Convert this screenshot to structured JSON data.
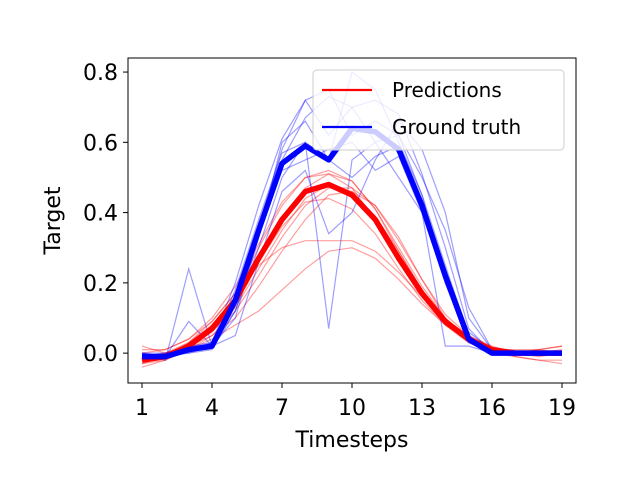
{
  "chart_data": {
    "type": "line",
    "title": "",
    "xlabel": "Timesteps",
    "ylabel": "Target",
    "xlim": [
      0.4,
      19.6
    ],
    "ylim": [
      -0.085,
      0.84
    ],
    "xticks": [
      1,
      4,
      7,
      10,
      13,
      16,
      19
    ],
    "xtick_labels": [
      "1",
      "4",
      "7",
      "10",
      "13",
      "16",
      "19"
    ],
    "yticks": [
      0.0,
      0.2,
      0.4,
      0.6,
      0.8
    ],
    "ytick_labels": [
      "0.0",
      "0.2",
      "0.4",
      "0.6",
      "0.8"
    ],
    "grid": false,
    "legend_position": "top-right",
    "x": [
      1,
      2,
      3,
      4,
      5,
      6,
      7,
      8,
      9,
      10,
      11,
      12,
      13,
      14,
      15,
      16,
      17,
      18,
      19
    ],
    "series": [
      {
        "name": "Predictions",
        "color": "#ff0000",
        "emphasis": "mean",
        "values": [
          -0.02,
          -0.01,
          0.02,
          0.07,
          0.15,
          0.27,
          0.38,
          0.46,
          0.48,
          0.45,
          0.38,
          0.27,
          0.17,
          0.09,
          0.04,
          0.01,
          0.0,
          0.0,
          0.0
        ]
      },
      {
        "name": "Ground truth",
        "color": "#0000ff",
        "emphasis": "mean",
        "values": [
          -0.01,
          -0.01,
          0.01,
          0.02,
          0.15,
          0.35,
          0.54,
          0.59,
          0.55,
          0.64,
          0.63,
          0.58,
          0.42,
          0.22,
          0.04,
          0.0,
          0.0,
          0.0,
          0.0
        ]
      }
    ],
    "sample_series": [
      {
        "color": "#ff0000",
        "values": [
          -0.03,
          -0.01,
          0.03,
          0.09,
          0.17,
          0.3,
          0.42,
          0.5,
          0.52,
          0.49,
          0.41,
          0.29,
          0.18,
          0.09,
          0.04,
          0.01,
          0.0,
          -0.01,
          0.0
        ]
      },
      {
        "color": "#ff0000",
        "values": [
          0.02,
          0.0,
          0.02,
          0.05,
          0.1,
          0.19,
          0.29,
          0.38,
          0.45,
          0.46,
          0.42,
          0.33,
          0.21,
          0.1,
          0.04,
          0.01,
          0.0,
          0.01,
          0.02
        ]
      },
      {
        "color": "#ff0000",
        "values": [
          -0.04,
          -0.02,
          0.01,
          0.04,
          0.08,
          0.12,
          0.18,
          0.24,
          0.29,
          0.3,
          0.27,
          0.21,
          0.14,
          0.08,
          0.04,
          0.01,
          -0.01,
          -0.02,
          -0.03
        ]
      },
      {
        "color": "#ff0000",
        "values": [
          0.0,
          0.01,
          0.04,
          0.09,
          0.17,
          0.25,
          0.3,
          0.32,
          0.32,
          0.32,
          0.29,
          0.23,
          0.16,
          0.09,
          0.05,
          0.02,
          0.0,
          0.0,
          0.0
        ]
      },
      {
        "color": "#ff0000",
        "values": [
          -0.02,
          0.0,
          0.03,
          0.08,
          0.16,
          0.27,
          0.38,
          0.47,
          0.51,
          0.49,
          0.41,
          0.3,
          0.19,
          0.1,
          0.04,
          0.01,
          0.0,
          0.01,
          0.02
        ]
      },
      {
        "color": "#ff0000",
        "values": [
          -0.01,
          0.0,
          0.02,
          0.06,
          0.13,
          0.24,
          0.35,
          0.44,
          0.48,
          0.46,
          0.39,
          0.29,
          0.18,
          0.09,
          0.04,
          0.01,
          0.0,
          0.0,
          0.01
        ]
      },
      {
        "color": "#ff0000",
        "values": [
          -0.03,
          -0.02,
          0.02,
          0.07,
          0.15,
          0.26,
          0.36,
          0.43,
          0.44,
          0.41,
          0.34,
          0.24,
          0.15,
          0.08,
          0.03,
          0.0,
          -0.01,
          -0.02,
          -0.02
        ]
      },
      {
        "color": "#ff0000",
        "values": [
          0.01,
          0.01,
          0.04,
          0.1,
          0.19,
          0.31,
          0.43,
          0.5,
          0.51,
          0.47,
          0.38,
          0.27,
          0.16,
          0.08,
          0.03,
          0.01,
          0.01,
          0.01,
          0.0
        ]
      },
      {
        "color": "#ff0000",
        "values": [
          -0.02,
          -0.01,
          0.01,
          0.05,
          0.12,
          0.22,
          0.33,
          0.42,
          0.47,
          0.47,
          0.42,
          0.32,
          0.21,
          0.11,
          0.05,
          0.01,
          0.0,
          0.0,
          0.0
        ]
      },
      {
        "color": "#0000ff",
        "values": [
          0.0,
          -0.02,
          0.24,
          0.02,
          0.1,
          0.33,
          0.55,
          0.67,
          0.73,
          0.7,
          0.6,
          0.5,
          0.4,
          0.2,
          0.04,
          0.0,
          0.0,
          0.0,
          0.0
        ]
      },
      {
        "color": "#0000ff",
        "values": [
          -0.01,
          -0.01,
          0.09,
          0.02,
          0.18,
          0.38,
          0.57,
          0.6,
          0.07,
          0.55,
          0.6,
          0.62,
          0.5,
          0.35,
          0.13,
          0.01,
          0.0,
          0.0,
          0.0
        ]
      },
      {
        "color": "#0000ff",
        "values": [
          0.0,
          0.0,
          0.0,
          0.01,
          0.12,
          0.3,
          0.5,
          0.6,
          0.55,
          0.8,
          0.75,
          0.6,
          0.45,
          0.25,
          0.05,
          0.0,
          0.0,
          0.0,
          0.0
        ]
      },
      {
        "color": "#0000ff",
        "values": [
          -0.01,
          -0.01,
          0.01,
          0.02,
          0.05,
          0.26,
          0.46,
          0.52,
          0.34,
          0.4,
          0.55,
          0.66,
          0.58,
          0.4,
          0.1,
          0.01,
          0.0,
          0.0,
          0.0
        ]
      },
      {
        "color": "#0000ff",
        "values": [
          0.0,
          -0.01,
          0.02,
          0.03,
          0.2,
          0.42,
          0.61,
          0.72,
          0.62,
          0.7,
          0.72,
          0.68,
          0.51,
          0.3,
          0.07,
          0.0,
          0.0,
          0.0,
          0.0
        ]
      },
      {
        "color": "#0000ff",
        "values": [
          -0.01,
          0.0,
          0.01,
          0.03,
          0.16,
          0.35,
          0.52,
          0.55,
          0.58,
          0.6,
          0.52,
          0.56,
          0.4,
          0.02,
          0.02,
          0.0,
          0.0,
          0.0,
          0.0
        ]
      },
      {
        "color": "#0000ff",
        "values": [
          0.0,
          -0.01,
          0.0,
          0.02,
          0.14,
          0.36,
          0.58,
          0.72,
          0.75,
          0.62,
          0.66,
          0.62,
          0.45,
          0.2,
          0.03,
          0.0,
          0.0,
          0.0,
          0.0
        ]
      },
      {
        "color": "#0000ff",
        "values": [
          -0.01,
          -0.01,
          0.02,
          0.02,
          0.12,
          0.33,
          0.6,
          0.66,
          0.55,
          0.5,
          0.56,
          0.59,
          0.43,
          0.24,
          0.06,
          0.01,
          0.0,
          0.0,
          0.0
        ]
      }
    ]
  }
}
